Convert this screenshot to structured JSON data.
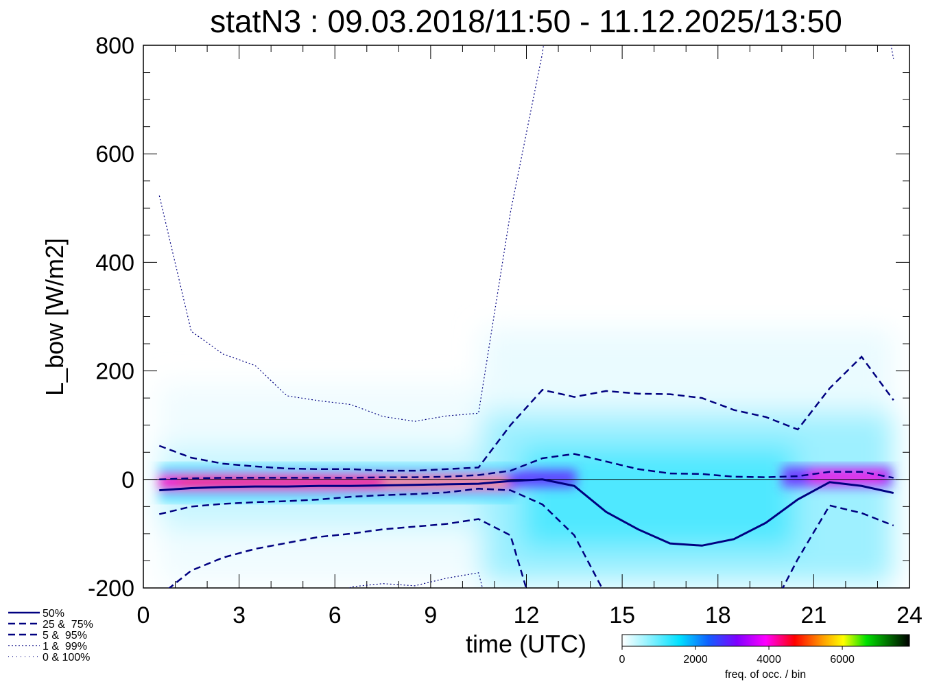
{
  "chart_data": {
    "type": "percentile-density",
    "title": "statN3 : 09.03.2018/11:50 - 11.12.2025/13:50",
    "x_label": "time (UTC)",
    "y_label": "L_bow [W/m2]",
    "xlim": [
      0,
      24
    ],
    "xticks": [
      0,
      3,
      6,
      9,
      12,
      15,
      18,
      21,
      24
    ],
    "ylim": [
      -200,
      800
    ],
    "yticks": [
      -200,
      0,
      200,
      400,
      600,
      800
    ],
    "x": [
      0.5,
      1.5,
      2.5,
      3.5,
      4.5,
      5.5,
      6.5,
      7.5,
      8.5,
      9.5,
      10.5,
      11.5,
      12.5,
      13.5,
      14.5,
      15.5,
      16.5,
      17.5,
      18.5,
      19.5,
      20.5,
      21.5,
      22.5,
      23.5
    ],
    "color": "#000080",
    "series": [
      {
        "name": "50%",
        "dash": "solid",
        "values": [
          -20,
          -16,
          -14,
          -13,
          -13,
          -12,
          -12,
          -11,
          -10,
          -9,
          -8,
          -3,
          0,
          -12,
          -60,
          -92,
          -118,
          -122,
          -110,
          -80,
          -37,
          -5,
          -12,
          -25
        ]
      },
      {
        "name": "25 &  75%",
        "dash": "dashed",
        "lower": [
          -64,
          -50,
          -45,
          -42,
          -40,
          -37,
          -32,
          -29,
          -27,
          -24,
          -17,
          -20,
          -46,
          -103,
          -215,
          null,
          null,
          null,
          null,
          -260,
          -147,
          -48,
          -62,
          -85
        ],
        "upper": [
          0,
          2,
          3,
          3,
          3,
          3,
          3,
          4,
          4,
          5,
          8,
          16,
          39,
          47,
          33,
          19,
          11,
          10,
          5,
          4,
          6,
          14,
          14,
          3
        ]
      },
      {
        "name": "5 &  95%",
        "dash": "dashed",
        "lower": [
          -215,
          -168,
          -144,
          -128,
          -117,
          -106,
          -100,
          -92,
          -87,
          -82,
          -73,
          -103,
          -300,
          null,
          null,
          null,
          null,
          null,
          null,
          null,
          null,
          null,
          null,
          null
        ],
        "upper": [
          62,
          40,
          29,
          24,
          20,
          19,
          19,
          16,
          16,
          19,
          22,
          100,
          165,
          152,
          163,
          158,
          157,
          150,
          128,
          115,
          92,
          168,
          226,
          146
        ]
      },
      {
        "name": "1 &  99%",
        "dash": "dotted",
        "lower": [
          null,
          null,
          null,
          null,
          null,
          -260,
          -198,
          -192,
          -196,
          -182,
          -172,
          -400,
          null,
          null,
          null,
          null,
          null,
          null,
          null,
          null,
          null,
          null,
          null,
          null
        ],
        "upper": [
          523,
          273,
          231,
          210,
          154,
          145,
          138,
          116,
          107,
          117,
          122,
          492,
          785,
          1200,
          null,
          null,
          null,
          null,
          null,
          null,
          null,
          null,
          1100,
          775
        ]
      },
      {
        "name": "0 & 100%",
        "dash": "sparse"
      }
    ],
    "colorbar": {
      "label": "freq. of occ. / bin",
      "zlim": [
        0,
        7830
      ],
      "ticks": [
        0,
        2000,
        4000,
        6000
      ]
    }
  }
}
